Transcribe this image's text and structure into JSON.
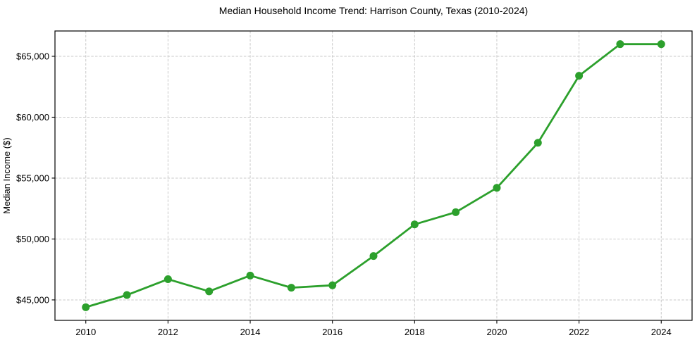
{
  "page": {
    "title": "Median Household Income Trend: Harrison County, Texas (2010-2024)"
  },
  "chart_data": {
    "type": "line",
    "title": "Median Household Income Trend: Harrison County, Texas (2010-2024)",
    "xlabel": "",
    "ylabel": "Median Income ($)",
    "x": [
      2010,
      2011,
      2012,
      2013,
      2014,
      2015,
      2016,
      2017,
      2018,
      2019,
      2020,
      2021,
      2022,
      2023,
      2024
    ],
    "series": [
      {
        "name": "Median Household Income",
        "values": [
          44400,
          45400,
          46700,
          45700,
          47000,
          46000,
          46200,
          48600,
          51200,
          52200,
          54200,
          57900,
          63400,
          66000,
          66000
        ]
      }
    ],
    "x_ticks": [
      2010,
      2012,
      2014,
      2016,
      2018,
      2020,
      2022,
      2024
    ],
    "x_tick_labels": [
      "2010",
      "2012",
      "2014",
      "2016",
      "2018",
      "2020",
      "2022",
      "2024"
    ],
    "y_ticks": [
      45000,
      50000,
      55000,
      60000,
      65000
    ],
    "y_tick_labels": [
      "$45,000",
      "$50,000",
      "$55,000",
      "$60,000",
      "$65,000"
    ],
    "xlim": [
      2009.25,
      2024.75
    ],
    "ylim": [
      43320,
      67080
    ],
    "grid": true,
    "grid_line_style": "dashed",
    "legend_position": "none",
    "marker": "circle",
    "colors": {
      "line": "#2ca02c",
      "grid": "#c9c9c9",
      "spine": "#000000",
      "text": "#000000",
      "background": "#ffffff"
    }
  }
}
